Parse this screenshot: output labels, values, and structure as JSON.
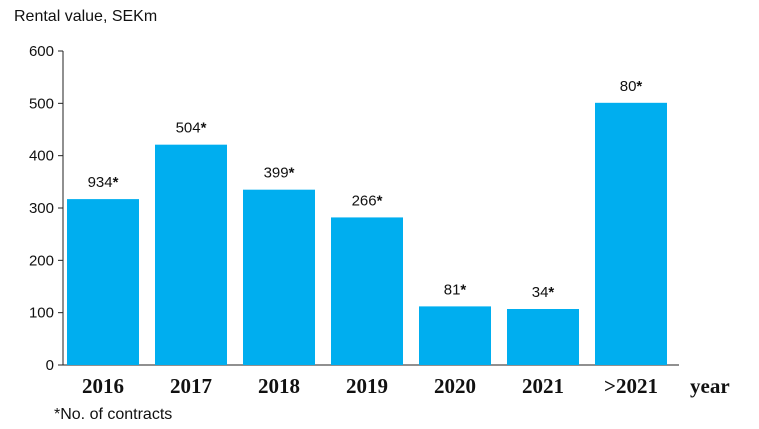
{
  "chart_data": {
    "type": "bar",
    "ylabel": "Rental value, SEKm",
    "xlabel": "year",
    "footnote": "*No. of contracts",
    "ylim": [
      0,
      600
    ],
    "yticks": [
      0,
      100,
      200,
      300,
      400,
      500,
      600
    ],
    "categories": [
      "2016",
      "2017",
      "2018",
      "2019",
      "2020",
      "2021",
      ">2021"
    ],
    "values": [
      317,
      421,
      335,
      282,
      112,
      107,
      501
    ],
    "annotations": [
      "934*",
      "504*",
      "399*",
      "266*",
      "81*",
      "34*",
      "80*"
    ],
    "bar_color": "#00AEEF",
    "grid": false
  }
}
